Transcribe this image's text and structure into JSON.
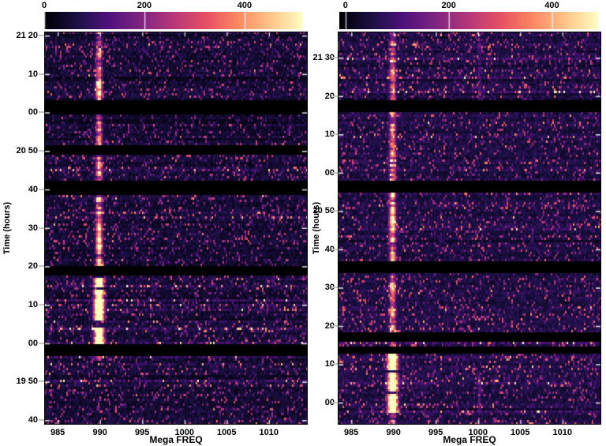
{
  "figure": {
    "background": "#ffffff",
    "text_color": "#000000",
    "description": "Two dynamic-spectrum waterfall panels with magma colorbars"
  },
  "chart_data": [
    {
      "type": "heatmap",
      "panel": "left",
      "xlabel": "Mega FREQ",
      "ylabel": "Time (hours)",
      "colormap": "magma",
      "x_range_mhz": [
        983.4,
        1014.6
      ],
      "x_ticks": [
        985,
        990,
        995,
        1000,
        1005,
        1010
      ],
      "time_top_min": 1281.0,
      "time_bottom_min": 1178.8,
      "y_ticks": [
        {
          "label": "21 20",
          "min": 1280
        },
        {
          "label": "10",
          "min": 1270
        },
        {
          "label": "00",
          "min": 1260
        },
        {
          "label": "20 50",
          "min": 1250
        },
        {
          "label": "40",
          "min": 1240
        },
        {
          "label": "30",
          "min": 1230
        },
        {
          "label": "20",
          "min": 1220
        },
        {
          "label": "10",
          "min": 1210
        },
        {
          "label": "00",
          "min": 1200
        },
        {
          "label": "19 50",
          "min": 1190
        },
        {
          "label": "40",
          "min": 1180
        }
      ],
      "colorbar": {
        "tick_labels": [
          "0",
          "200",
          "400"
        ],
        "tick_values": [
          0,
          200,
          400
        ],
        "vmin": 0,
        "vmax": 515
      },
      "rfi_line_mhz": 989.9,
      "data_gaps_min": [
        [
          1259.6,
          1263.3
        ],
        [
          1249.2,
          1251.6
        ],
        [
          1238.5,
          1242.0
        ],
        [
          1217.5,
          1219.8
        ],
        [
          1196.7,
          1199.6
        ]
      ],
      "rfi_intensity_periods": [
        [
          1276.0,
          1281.0,
          240
        ],
        [
          1263.3,
          1276.0,
          390
        ],
        [
          1251.6,
          1259.6,
          410
        ],
        [
          1242.0,
          1249.2,
          400
        ],
        [
          1219.8,
          1238.5,
          440
        ],
        [
          1199.6,
          1217.5,
          730
        ],
        [
          1195.2,
          1196.7,
          280
        ]
      ],
      "secondary_lines": [],
      "noise_seed": 7
    },
    {
      "type": "heatmap",
      "panel": "right",
      "xlabel": "Mega FREQ",
      "ylabel": "Time (hours)",
      "colormap": "magma",
      "x_range_mhz": [
        983.4,
        1014.6
      ],
      "x_ticks": [
        985,
        990,
        995,
        1000,
        1005,
        1010
      ],
      "time_top_min": 1296.8,
      "time_bottom_min": 1194.2,
      "y_ticks": [
        {
          "label": "21 30",
          "min": 1290
        },
        {
          "label": "20",
          "min": 1280
        },
        {
          "label": "10",
          "min": 1270
        },
        {
          "label": "00",
          "min": 1260
        },
        {
          "label": "20 50",
          "min": 1250
        },
        {
          "label": "40",
          "min": 1240
        },
        {
          "label": "30",
          "min": 1230
        },
        {
          "label": "20",
          "min": 1220
        },
        {
          "label": "10",
          "min": 1210
        },
        {
          "label": "00",
          "min": 1200
        }
      ],
      "colorbar": {
        "tick_labels": [
          "0",
          "200",
          "400"
        ],
        "tick_values": [
          0,
          200,
          400
        ],
        "vmin": -12,
        "vmax": 488
      },
      "rfi_line_mhz": 989.9,
      "data_gaps_min": [
        [
          1275.6,
          1279.1
        ],
        [
          1254.5,
          1258.0
        ],
        [
          1233.5,
          1236.8
        ],
        [
          1216.0,
          1218.5
        ],
        [
          1212.8,
          1214.4
        ]
      ],
      "rfi_intensity_periods": [
        [
          1279.1,
          1296.8,
          280
        ],
        [
          1258.0,
          1275.6,
          300
        ],
        [
          1236.8,
          1254.5,
          400
        ],
        [
          1218.5,
          1233.5,
          320
        ],
        [
          1214.4,
          1216.0,
          450
        ],
        [
          1197.0,
          1212.8,
          730
        ],
        [
          1194.2,
          1197.0,
          280
        ]
      ],
      "secondary_lines": [
        {
          "freq_mhz": 1000.2,
          "periods": [
            [
              1279.1,
              1296.8,
              95
            ],
            [
              1197.0,
              1208.0,
              115
            ]
          ]
        }
      ],
      "noise_seed": 13
    }
  ]
}
